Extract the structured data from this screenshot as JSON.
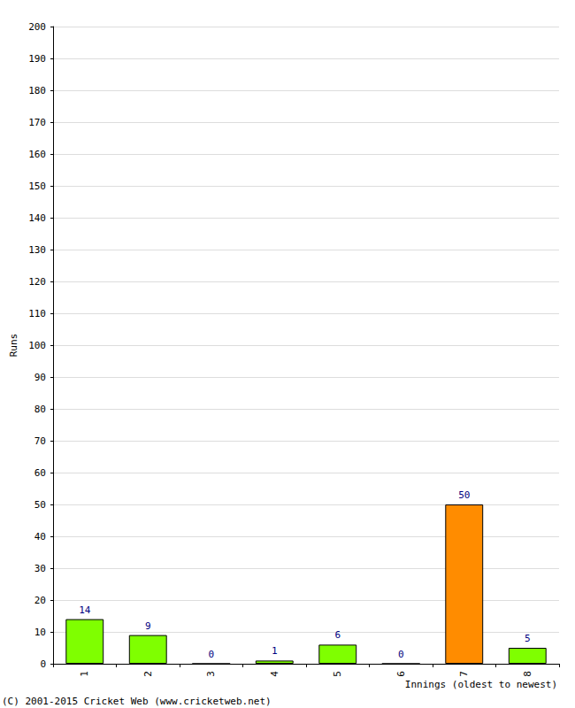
{
  "chart_data": {
    "type": "bar",
    "x_label": "Innings (oldest to newest)",
    "y_label": "Runs",
    "annotations": [
      "(C) 2001-2015 Cricket Web (www.cricketweb.net)"
    ],
    "categories": [
      "1",
      "2",
      "3",
      "4",
      "5",
      "6",
      "7",
      "8"
    ],
    "values": [
      14,
      9,
      0,
      1,
      6,
      0,
      50,
      5
    ],
    "colors": [
      "#7fff00",
      "#7fff00",
      "#7fff00",
      "#7fff00",
      "#7fff00",
      "#7fff00",
      "#ff8c00",
      "#7fff00"
    ],
    "ylim": [
      0,
      200
    ],
    "yticks": [
      0,
      10,
      20,
      30,
      40,
      50,
      60,
      70,
      80,
      90,
      100,
      110,
      120,
      130,
      140,
      150,
      160,
      170,
      180,
      190,
      200
    ],
    "grid": true,
    "data_labels": true
  }
}
